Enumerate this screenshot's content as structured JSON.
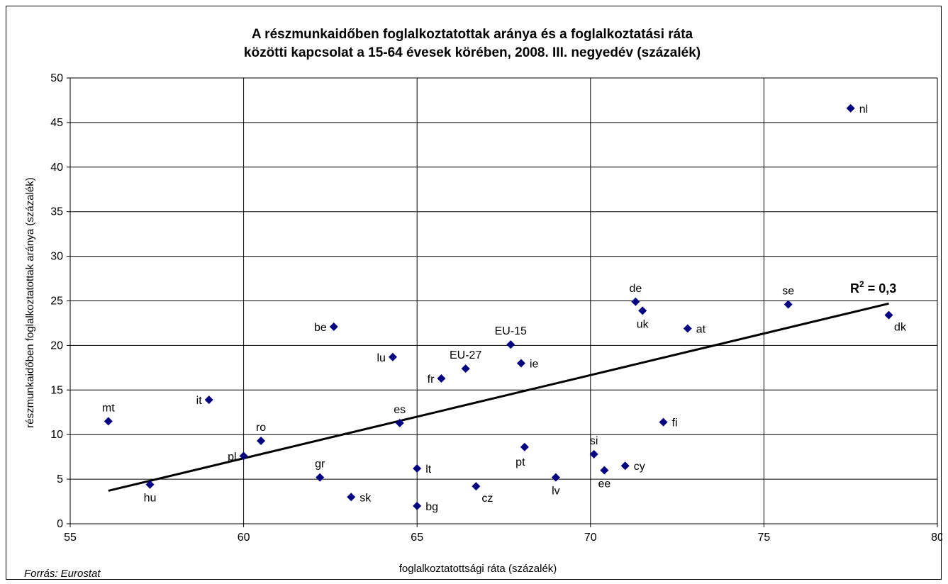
{
  "chart_data": {
    "type": "scatter",
    "title_lines": [
      "A részmunkaidőben foglalkoztatottak aránya és a foglalkoztatási ráta",
      "közötti kapcsolat a 15-64 évesek körében, 2008. III. negyedév (százalék)"
    ],
    "xlabel": "foglalkoztatottsági ráta (százalék)",
    "ylabel": "részmunkaidőben foglalkoztatottak aránya (százalék)",
    "xlim": [
      55,
      80
    ],
    "ylim": [
      0,
      50
    ],
    "x_ticks": [
      55,
      60,
      65,
      70,
      75,
      80
    ],
    "y_ticks": [
      0,
      5,
      10,
      15,
      20,
      25,
      30,
      35,
      40,
      45,
      50
    ],
    "grid": true,
    "marker_color": "#000080",
    "points": [
      {
        "label": "mt",
        "x": 56.1,
        "y": 11.5,
        "pos": "above"
      },
      {
        "label": "hu",
        "x": 57.3,
        "y": 4.4,
        "pos": "below"
      },
      {
        "label": "it",
        "x": 59.0,
        "y": 13.9,
        "pos": "left"
      },
      {
        "label": "pl",
        "x": 60.0,
        "y": 7.6,
        "pos": "left"
      },
      {
        "label": "ro",
        "x": 60.5,
        "y": 9.3,
        "pos": "above"
      },
      {
        "label": "gr",
        "x": 62.2,
        "y": 5.2,
        "pos": "above"
      },
      {
        "label": "be",
        "x": 62.6,
        "y": 22.1,
        "pos": "left"
      },
      {
        "label": "sk",
        "x": 63.1,
        "y": 3.0,
        "pos": "right"
      },
      {
        "label": "lu",
        "x": 64.3,
        "y": 18.7,
        "pos": "left"
      },
      {
        "label": "es",
        "x": 64.5,
        "y": 11.3,
        "pos": "above"
      },
      {
        "label": "lt",
        "x": 65.0,
        "y": 6.2,
        "pos": "right"
      },
      {
        "label": "bg",
        "x": 65.0,
        "y": 2.0,
        "pos": "right"
      },
      {
        "label": "fr",
        "x": 65.7,
        "y": 16.3,
        "pos": "left"
      },
      {
        "label": "EU-27",
        "x": 66.4,
        "y": 17.4,
        "pos": "above"
      },
      {
        "label": "cz",
        "x": 66.7,
        "y": 4.2,
        "pos": "below-right"
      },
      {
        "label": "EU-15",
        "x": 67.7,
        "y": 20.1,
        "pos": "above"
      },
      {
        "label": "ie",
        "x": 68.0,
        "y": 18.0,
        "pos": "right"
      },
      {
        "label": "pt",
        "x": 68.1,
        "y": 8.6,
        "pos": "below-left"
      },
      {
        "label": "lv",
        "x": 69.0,
        "y": 5.2,
        "pos": "below"
      },
      {
        "label": "si",
        "x": 70.1,
        "y": 7.8,
        "pos": "above"
      },
      {
        "label": "ee",
        "x": 70.4,
        "y": 6.0,
        "pos": "below"
      },
      {
        "label": "cy",
        "x": 71.0,
        "y": 6.5,
        "pos": "right"
      },
      {
        "label": "de",
        "x": 71.3,
        "y": 24.9,
        "pos": "above"
      },
      {
        "label": "uk",
        "x": 71.5,
        "y": 23.9,
        "pos": "below"
      },
      {
        "label": "fi",
        "x": 72.1,
        "y": 11.4,
        "pos": "right"
      },
      {
        "label": "at",
        "x": 72.8,
        "y": 21.9,
        "pos": "right"
      },
      {
        "label": "se",
        "x": 75.7,
        "y": 24.6,
        "pos": "above"
      },
      {
        "label": "nl",
        "x": 77.5,
        "y": 46.6,
        "pos": "right"
      },
      {
        "label": "dk",
        "x": 78.6,
        "y": 23.4,
        "pos": "below-right"
      }
    ],
    "trendline": {
      "x": [
        56.1,
        78.6
      ],
      "y": [
        3.7,
        24.7
      ]
    },
    "r2_label": "R",
    "r2_sup": "2",
    "r2_value": " = 0,3"
  },
  "source_note": "Forrás: Eurostat"
}
